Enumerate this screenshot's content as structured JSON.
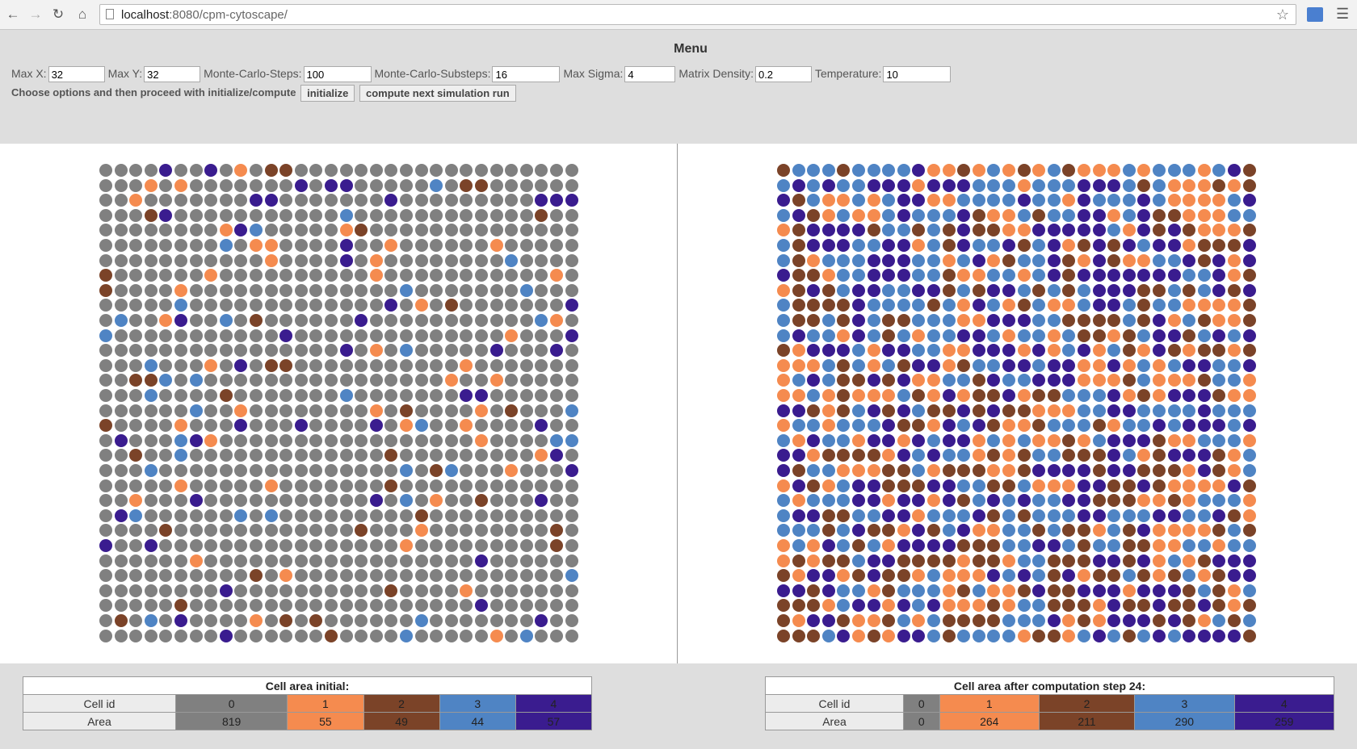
{
  "browser": {
    "url_host": "localhost",
    "url_rest": ":8080/cpm-cytoscape/"
  },
  "menu": {
    "title": "Menu",
    "params": [
      {
        "label": "Max X:",
        "value": "32",
        "width": 70
      },
      {
        "label": "Max Y:",
        "value": "32",
        "width": 70
      },
      {
        "label": "Monte-Carlo-Steps:",
        "value": "100",
        "width": 84
      },
      {
        "label": "Monte-Carlo-Substeps:",
        "value": "16",
        "width": 84
      },
      {
        "label": "Max Sigma:",
        "value": "4",
        "width": 63
      },
      {
        "label": "Matrix Density:",
        "value": "0.2",
        "width": 70
      },
      {
        "label": "Temperature:",
        "value": "10",
        "width": 84
      }
    ],
    "instructions": "Choose options and then proceed with initialize/compute",
    "initialize_label": "initialize",
    "compute_label": "compute next simulation run"
  },
  "colors": {
    "0": "#808080",
    "1": "#f58b4f",
    "2": "#7b4328",
    "3": "#4f84c4",
    "4": "#3a1c8f"
  },
  "grid_initial": [
    "00004004010220000000000000000000",
    "00010100000004044000003022000000",
    "00100000004400000004000000000444",
    "00024000000000003000000000000200",
    "00000000143000001200000000000000",
    "00000000301100004001000000100000",
    "00000000000100004010000000030000",
    "20000001000000000010000000000010",
    "20000100000000000000300000003000",
    "00000300000000000004010200000004",
    "03001400302000000400000000000310",
    "30000000000040000000000000010004",
    "00000000000000004010300000400040",
    "00030001040220000000000010000000",
    "00223030000000000000000100100000",
    "00030000200000003000000044000000",
    "00000030010000000010200001020003",
    "20000100040004000040130010000400",
    "04000341000000000000000001000033",
    "00200300000000000002000000000140",
    "00030000000000000000302300010004",
    "00000100000100000002000000000000",
    "00100040000000000040301002000400",
    "04300000030300000000020000000000",
    "00002000000000000200010000000020",
    "40040000000000000000100000000020",
    "00000010000000000000000004000000",
    "00000000002010000000000000000003",
    "00000000400000000002000010000000",
    "00000200000000000000000004000000",
    "02030400001020200000030000000400",
    "00000000400000020000300000103000"
  ],
  "grid_after": [
    "23332333341121312132111313331342",
    "34343344414443331333444323111212",
    "42311313441133334331433343111134",
    "34213113433342113233441342211133",
    "12444423323242211444443142421112",
    "32444334413243342341242434412224",
    "32133344433134123342142113342414",
    "42213344433211331342444444433412",
    "12423443344232443232344422323424",
    "32222433332314312311344323311112",
    "32232432233311444332222324132112",
    "34331432313344313313221234423434",
    "21444314433114441413413214212212",
    "11132313244123344344114131344334",
    "13432242411332433444111231112331",
    "11312111321412241223334121444211",
    "44212342432242422111334433334333",
    "13313334221434211233321334344434",
    "31433144143441313112134442113331",
    "44122221434331212332224312444213",
    "42331112231222112444424422214213",
    "14213442224433223111442242111142",
    "31333441441423434334422211213331",
    "34422334413334232333443334433421",
    "33323422142341133232213241111232",
    "13143231444422233443233221133133",
    "12122344222212213322244241312444",
    "21441242213111434324122321231244",
    "44243312333123112422444144423213",
    "22213441434111213322214224224212",
    "21442112313222233341214442421323",
    "22234121443233331221343234344442"
  ],
  "table_initial": {
    "caption": "Cell area initial:",
    "row1_label": "Cell id",
    "row2_label": "Area",
    "cells": [
      {
        "id": "0",
        "area": "819"
      },
      {
        "id": "1",
        "area": "55"
      },
      {
        "id": "2",
        "area": "49"
      },
      {
        "id": "3",
        "area": "44"
      },
      {
        "id": "4",
        "area": "57"
      }
    ]
  },
  "table_after": {
    "caption": "Cell area after computation step 24:",
    "row1_label": "Cell id",
    "row2_label": "Area",
    "cells": [
      {
        "id": "0",
        "area": "0"
      },
      {
        "id": "1",
        "area": "264"
      },
      {
        "id": "2",
        "area": "211"
      },
      {
        "id": "3",
        "area": "290"
      },
      {
        "id": "4",
        "area": "259"
      }
    ]
  }
}
